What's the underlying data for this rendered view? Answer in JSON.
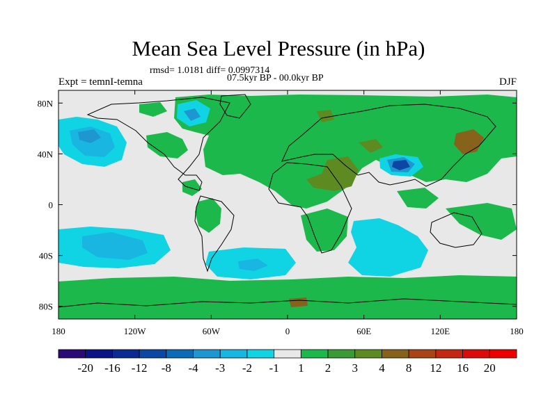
{
  "title": "Mean Sea Level Pressure (in hPa)",
  "stats_line": "rmsd= 1.0181 diff= 0.0997314",
  "period_line": "07.5kyr BP - 00.0kyr BP",
  "experiment_label": "Expt = temnI-temna",
  "season_label": "DJF",
  "chart_data": {
    "type": "heatmap",
    "projection": "cylindrical-equidistant",
    "variable": "Mean Sea Level Pressure difference",
    "units": "hPa",
    "xlim": [
      -180,
      180
    ],
    "ylim": [
      -90,
      90
    ],
    "x_ticks": [
      {
        "value": -180,
        "label": "180"
      },
      {
        "value": -120,
        "label": "120W"
      },
      {
        "value": -60,
        "label": "60W"
      },
      {
        "value": 0,
        "label": "0"
      },
      {
        "value": 60,
        "label": "60E"
      },
      {
        "value": 120,
        "label": "120E"
      },
      {
        "value": 180,
        "label": "180"
      }
    ],
    "y_ticks": [
      {
        "value": 80,
        "label": "80N"
      },
      {
        "value": 40,
        "label": "40N"
      },
      {
        "value": 0,
        "label": "0"
      },
      {
        "value": -40,
        "label": "40S"
      },
      {
        "value": -80,
        "label": "80S"
      }
    ],
    "colorbar": {
      "levels": [
        "-20",
        "-16",
        "-12",
        "-8",
        "-4",
        "-3",
        "-2",
        "-1",
        "1",
        "2",
        "3",
        "4",
        "8",
        "12",
        "16",
        "20"
      ],
      "colors": [
        "#2a0a74",
        "#0b1484",
        "#0b2a92",
        "#0b47a3",
        "#0b6bb7",
        "#1e96d0",
        "#18b6e0",
        "#10d4e4",
        "#e8e8e8",
        "#1cb84c",
        "#3a9a34",
        "#5e8a22",
        "#86621a",
        "#a84416",
        "#c42812",
        "#dc0a0a",
        "#ee0000"
      ]
    },
    "regions": [
      {
        "name": "NE Pacific low",
        "value_class": "-3 to -2",
        "lon": -160,
        "lat": 55
      },
      {
        "name": "Hudson Bay low",
        "value_class": "-2 to -1",
        "lon": -80,
        "lat": 63
      },
      {
        "name": "Tibet low",
        "value_class": "-8 to -4",
        "lon": 90,
        "lat": 32
      },
      {
        "name": "South Pacific low",
        "value_class": "-3 to -2",
        "lon": -140,
        "lat": -33
      },
      {
        "name": "South Atlantic low",
        "value_class": "-2 to -1",
        "lon": -25,
        "lat": -45
      },
      {
        "name": "Indian Ocean low",
        "value_class": "-2 to -1",
        "lon": 60,
        "lat": -30
      },
      {
        "name": "Eurasia high",
        "value_class": "1 to 2",
        "lon": 60,
        "lat": 45
      },
      {
        "name": "Middle East high",
        "value_class": "2 to 3",
        "lon": 45,
        "lat": 28
      },
      {
        "name": "NE Siberia high",
        "value_class": "3 to 4",
        "lon": 148,
        "lat": 52
      },
      {
        "name": "Antarctic high",
        "value_class": "1 to 2",
        "lon": 0,
        "lat": -80
      }
    ]
  }
}
